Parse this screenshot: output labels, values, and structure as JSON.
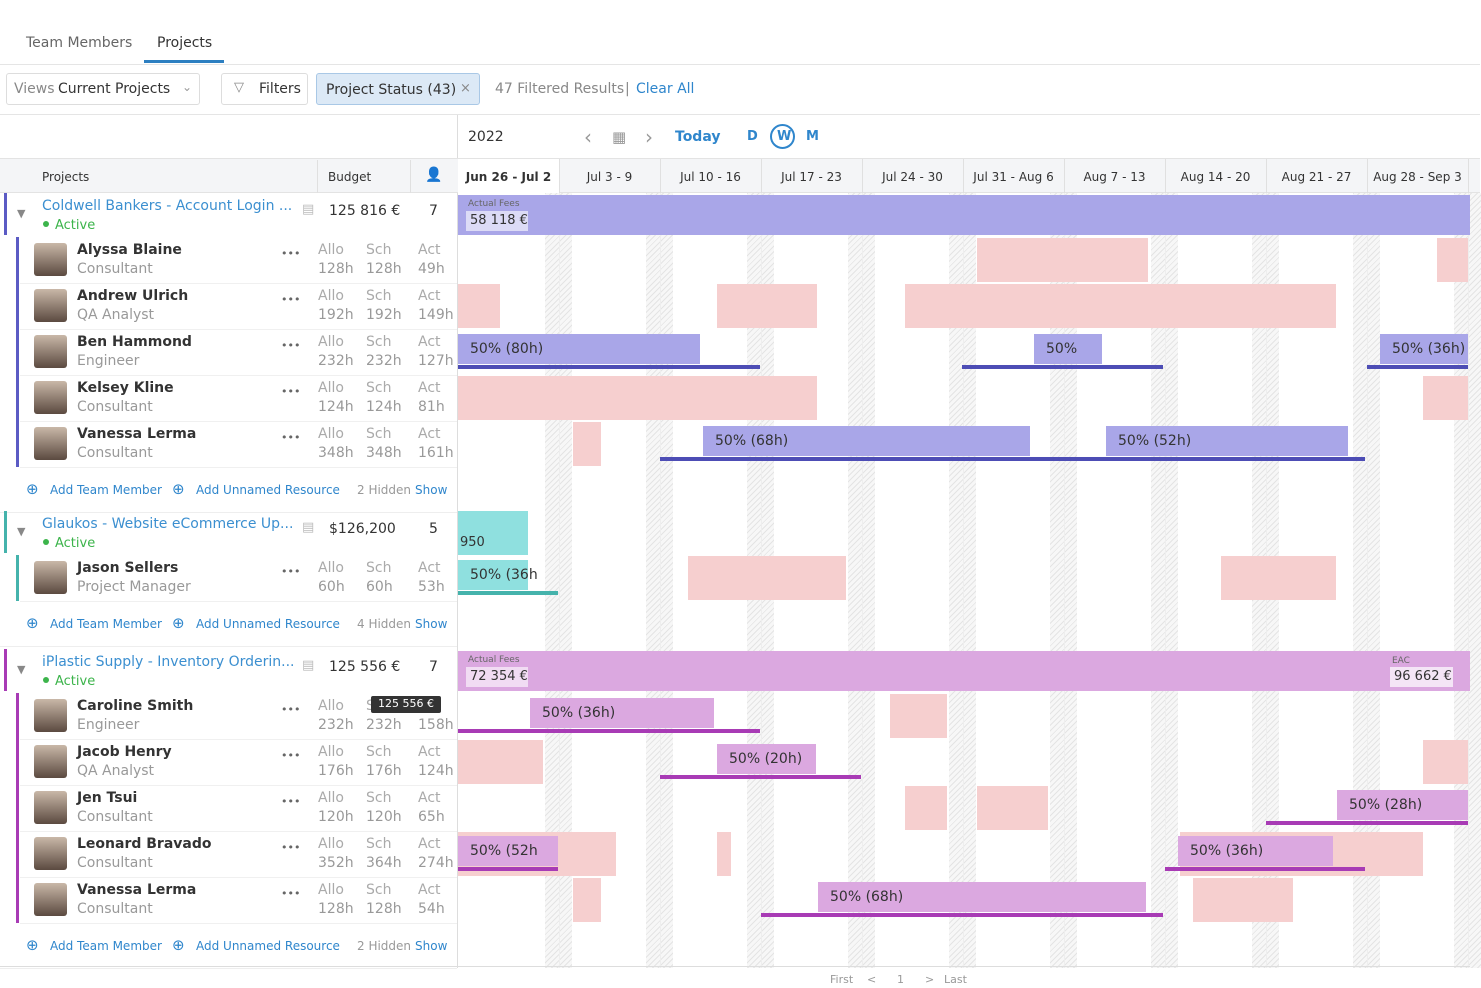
{
  "tabs": [
    "Team Members",
    "Projects"
  ],
  "toolbar": {
    "views_label": "Views",
    "view": "Current Projects",
    "filters": "Filters",
    "chip": "Project Status (43)",
    "results": "47 Filtered Results",
    "separator": "|",
    "clear": "Clear All"
  },
  "timeline": {
    "year": "2022",
    "today": "Today",
    "scales": [
      "D",
      "W",
      "M"
    ]
  },
  "columns": {
    "projects": "Projects",
    "budget": "Budget"
  },
  "weeks": [
    "Jun 26 - Jul 2",
    "Jul 3 - 9",
    "Jul 10 - 16",
    "Jul 17 - 23",
    "Jul 24 - 30",
    "Jul 31 - Aug 6",
    "Aug 7 - 13",
    "Aug 14 - 20",
    "Aug 21 - 27",
    "Aug 28 - Sep 3"
  ],
  "column_labels": [
    "Allo",
    "Sch",
    "Act"
  ],
  "footer": {
    "add_member": "Add Team Member",
    "add_unnamed": "Add Unnamed Resource",
    "show": "Show"
  },
  "projects": [
    {
      "name": "Coldwell Bankers - Account Login ...",
      "status": "Active",
      "budget": "125 816 €",
      "count": 7,
      "summary": {
        "label": "Actual Fees",
        "value": "58 118 €"
      },
      "hidden": "2 Hidden",
      "members": [
        {
          "name": "Alyssa Blaine",
          "role": "Consultant",
          "allo": "128h",
          "sch": "128h",
          "act": "49h",
          "bars": []
        },
        {
          "name": "Andrew Ulrich",
          "role": "QA Analyst",
          "allo": "192h",
          "sch": "192h",
          "act": "149h",
          "bars": []
        },
        {
          "name": "Ben Hammond",
          "role": "Engineer",
          "allo": "232h",
          "sch": "232h",
          "act": "127h",
          "bars": [
            "50% (80h)",
            "50%",
            "50% (36h)"
          ]
        },
        {
          "name": "Kelsey Kline",
          "role": "Consultant",
          "allo": "124h",
          "sch": "124h",
          "act": "81h",
          "bars": []
        },
        {
          "name": "Vanessa Lerma",
          "role": "Consultant",
          "allo": "348h",
          "sch": "348h",
          "act": "161h",
          "bars": [
            "50% (68h)",
            "50% (52h)"
          ]
        }
      ]
    },
    {
      "name": "Glaukos - Website eCommerce Up...",
      "status": "Active",
      "budget": "$126,200",
      "count": 5,
      "summary": {
        "value": "950"
      },
      "hidden": "4 Hidden",
      "members": [
        {
          "name": "Jason Sellers",
          "role": "Project Manager",
          "allo": "60h",
          "sch": "60h",
          "act": "53h",
          "bars": [
            "50% (36h"
          ]
        }
      ]
    },
    {
      "name": "iPlastic Supply - Inventory Orderin...",
      "status": "Active",
      "budget": "125 556 €",
      "count": 7,
      "summary": {
        "label": "Actual Fees",
        "value": "72 354 €",
        "eac_label": "EAC",
        "eac": "96 662 €"
      },
      "hidden": "2 Hidden",
      "members": [
        {
          "name": "Caroline Smith",
          "role": "Engineer",
          "allo": "232h",
          "sch": "232h",
          "act": "158h",
          "tooltip": "125 556 €",
          "bars": [
            "50% (36h)"
          ]
        },
        {
          "name": "Jacob Henry",
          "role": "QA Analyst",
          "allo": "176h",
          "sch": "176h",
          "act": "124h",
          "bars": [
            "50% (20h)"
          ]
        },
        {
          "name": "Jen Tsui",
          "role": "Consultant",
          "allo": "120h",
          "sch": "120h",
          "act": "65h",
          "bars": [
            "50% (28h)"
          ]
        },
        {
          "name": "Leonard Bravado",
          "role": "Consultant",
          "allo": "352h",
          "sch": "364h",
          "act": "274h",
          "bars": [
            "50% (52h",
            "50% (36h)"
          ]
        },
        {
          "name": "Vanessa Lerma",
          "role": "Consultant",
          "allo": "128h",
          "sch": "128h",
          "act": "54h",
          "bars": [
            "50% (68h)"
          ]
        }
      ]
    }
  ],
  "pagination": [
    "First",
    "<",
    "1",
    ">",
    "Last"
  ]
}
